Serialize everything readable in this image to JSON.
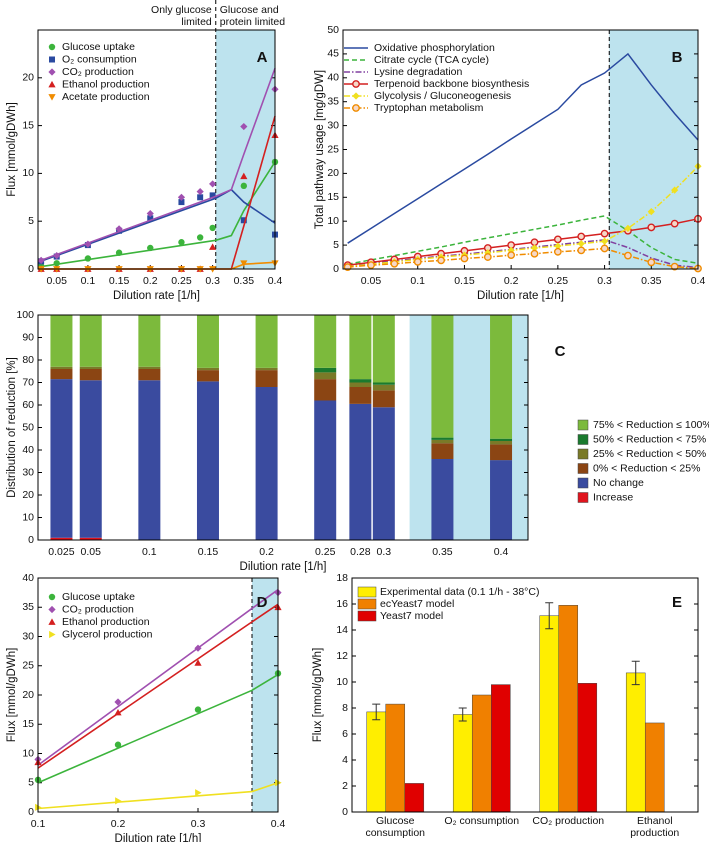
{
  "chart_data": [
    {
      "type": "scatter",
      "label": "A",
      "xlabel": "Dilution rate [1/h]",
      "ylabel": "Flux [mmol/gDWh]",
      "annotations": [
        "Only glucose limited",
        "Glucose  and protein limited"
      ],
      "x": [
        0.025,
        0.05,
        0.1,
        0.15,
        0.2,
        0.25,
        0.28,
        0.3,
        0.35,
        0.4
      ],
      "xlim": [
        0.02,
        0.4
      ],
      "xticks": [
        0.05,
        0.1,
        0.15,
        0.2,
        0.25,
        0.3,
        0.35,
        0.4
      ],
      "ylim": [
        0,
        25
      ],
      "yticks": [
        0,
        5,
        10,
        15,
        20
      ],
      "threshold": 0.305,
      "threshold_line": true,
      "fit_x": [
        0.02,
        0.305,
        0.33,
        0.35,
        0.4
      ],
      "series": [
        {
          "name": "Glucose uptake",
          "color": "#3cb43c",
          "marker": "circle",
          "values": [
            0.3,
            0.6,
            1.1,
            1.7,
            2.2,
            2.8,
            3.3,
            4.3,
            8.7,
            11.2
          ],
          "fit": [
            0.2,
            3.0,
            3.5,
            6.1,
            11.2
          ]
        },
        {
          "name": "O₂ consumption",
          "color": "#2a4aa0",
          "marker": "square",
          "values": [
            0.8,
            1.3,
            2.5,
            4.0,
            5.3,
            7.0,
            7.5,
            7.7,
            5.1,
            3.6
          ],
          "fit": [
            0.7,
            7.4,
            8.3,
            7.0,
            4.8
          ]
        },
        {
          "name": "CO₂ production",
          "color": "#a050b0",
          "marker": "diamond",
          "values": [
            0.9,
            1.4,
            2.6,
            4.2,
            5.8,
            7.5,
            8.1,
            8.9,
            14.9,
            18.8
          ],
          "fit": [
            0.8,
            7.6,
            8.3,
            12,
            21
          ]
        },
        {
          "name": "Ethanol production",
          "color": "#d42020",
          "marker": "triangle",
          "values": [
            0,
            0,
            0,
            0,
            0,
            0,
            0,
            2.3,
            9.7,
            14
          ],
          "fit": [
            0,
            0,
            0,
            4.5,
            16
          ]
        },
        {
          "name": "Acetate production",
          "color": "#f08c00",
          "marker": "triangle-down",
          "values": [
            0,
            0,
            0,
            0,
            0,
            0,
            0,
            0,
            0.6,
            0.6
          ],
          "fit": [
            0,
            0,
            0,
            0.5,
            0.7
          ]
        }
      ]
    },
    {
      "type": "line",
      "label": "B",
      "xlabel": "Dilution rate [1/h]",
      "ylabel": "Total pathway usage [mg/gDW]",
      "x": [
        0.025,
        0.05,
        0.075,
        0.1,
        0.125,
        0.15,
        0.175,
        0.2,
        0.225,
        0.25,
        0.275,
        0.3,
        0.325,
        0.35,
        0.375,
        0.4
      ],
      "xlim": [
        0.02,
        0.4
      ],
      "xticks": [
        0.05,
        0.1,
        0.15,
        0.2,
        0.25,
        0.3,
        0.35,
        0.4
      ],
      "ylim": [
        0,
        50
      ],
      "yticks": [
        0,
        5,
        10,
        15,
        20,
        25,
        30,
        35,
        40,
        45,
        50
      ],
      "threshold": 0.305,
      "threshold_line": true,
      "series": [
        {
          "name": "Oxidative phosphorylation",
          "color": "#2a4aa0",
          "dash": "solid",
          "values": [
            5.4,
            8.5,
            11.6,
            14.7,
            17.8,
            20.9,
            24,
            27.2,
            30.3,
            33.4,
            38.5,
            41,
            45,
            38.5,
            32.5,
            27
          ]
        },
        {
          "name": "Citrate cycle (TCA cycle)",
          "color": "#3cb43c",
          "dash": "dashed",
          "values": [
            1.0,
            1.9,
            2.8,
            3.7,
            4.6,
            5.6,
            6.5,
            7.4,
            8.3,
            9.2,
            10.2,
            11.1,
            8.0,
            4.5,
            2.0,
            1.2
          ]
        },
        {
          "name": "Lysine degradation",
          "color": "#8040a0",
          "dash": "dashdot",
          "values": [
            0.7,
            1.2,
            1.7,
            2.2,
            2.7,
            3.1,
            3.6,
            4.1,
            4.6,
            5.1,
            5.6,
            6.1,
            4.5,
            2.3,
            0.8,
            0.3
          ]
        },
        {
          "name": "Terpenoid backbone biosynthesis",
          "color": "#d42020",
          "dash": "solid",
          "marker": "circle-open",
          "values": [
            0.8,
            1.4,
            2.0,
            2.6,
            3.2,
            3.8,
            4.4,
            5.0,
            5.6,
            6.2,
            6.8,
            7.4,
            8.0,
            8.7,
            9.5,
            10.5
          ]
        },
        {
          "name": "Glycolysis / Gluconeogenesis",
          "color": "#f0e020",
          "dash": "dashdot",
          "marker": "diamond",
          "values": [
            0.5,
            1.0,
            1.5,
            2.0,
            2.5,
            2.9,
            3.4,
            3.9,
            4.4,
            4.8,
            5.3,
            5.8,
            8.5,
            12,
            16.5,
            21.5
          ]
        },
        {
          "name": "Tryptophan metabolism",
          "color": "#f08c00",
          "dash": "dashdot",
          "marker": "circle-open",
          "values": [
            0.4,
            0.8,
            1.1,
            1.5,
            1.8,
            2.2,
            2.5,
            2.9,
            3.2,
            3.6,
            3.9,
            4.3,
            2.8,
            1.4,
            0.5,
            0.1
          ]
        }
      ]
    },
    {
      "type": "stacked-bar",
      "label": "C",
      "xlabel": "Dilution rate [1/h]",
      "ylabel": "Distribution of reduction [%]",
      "x": [
        0.025,
        0.05,
        0.1,
        0.15,
        0.2,
        0.25,
        0.28,
        0.3,
        0.35,
        0.4
      ],
      "xlim": [
        0.005,
        0.423
      ],
      "ylim": [
        0,
        100
      ],
      "yticks": [
        0,
        10,
        20,
        30,
        40,
        50,
        60,
        70,
        80,
        90,
        100
      ],
      "threshold": 0.322,
      "threshold_line": false,
      "legend_reverse": true,
      "series": [
        {
          "name": "Increase",
          "color": "#e0141e",
          "values": [
            1,
            1,
            0,
            0,
            0,
            0,
            0,
            0,
            0,
            0
          ]
        },
        {
          "name": "No change",
          "color": "#3a4b9f",
          "values": [
            70.5,
            70,
            71,
            70.5,
            68,
            62,
            60.5,
            59,
            36,
            35.5
          ]
        },
        {
          "name": "0% < Reduction < 25%",
          "color": "#8b4513",
          "values": [
            4.5,
            5,
            5,
            5,
            7.5,
            9.5,
            7.5,
            7.5,
            7,
            7
          ]
        },
        {
          "name": "25% < Reduction < 50%",
          "color": "#7a7a28",
          "values": [
            1,
            1,
            1,
            1,
            1,
            3,
            2,
            2.5,
            1.5,
            1.5
          ]
        },
        {
          "name": "50% < Reduction < 75%",
          "color": "#1a7a2e",
          "values": [
            0,
            0,
            0,
            0,
            0,
            2,
            1.5,
            1,
            1,
            1
          ]
        },
        {
          "name": "75% < Reduction ≤ 100%",
          "color": "#7cba3c",
          "values": [
            23,
            23,
            23,
            23.5,
            23.5,
            23.5,
            28.5,
            30,
            54.5,
            55
          ]
        }
      ]
    },
    {
      "type": "scatter",
      "label": "D",
      "xlabel": "Dilution rate [1/h]",
      "ylabel": "Flux [mmol/gDWh]",
      "x": [
        0.1,
        0.2,
        0.3,
        0.4
      ],
      "xlim": [
        0.1,
        0.4
      ],
      "xticks": [
        0.1,
        0.2,
        0.3,
        0.4
      ],
      "ylim": [
        0,
        40
      ],
      "yticks": [
        0,
        5,
        10,
        15,
        20,
        25,
        30,
        35,
        40
      ],
      "threshold": 0.3675,
      "threshold_line": true,
      "fit_x": [
        0.1,
        0.3675,
        0.4
      ],
      "series": [
        {
          "name": "Glucose uptake",
          "color": "#3cb43c",
          "marker": "circle",
          "values": [
            5.5,
            11.5,
            17.5,
            23.7
          ],
          "fit": [
            5,
            20.8,
            23.5
          ]
        },
        {
          "name": "CO₂ production",
          "color": "#a050b0",
          "marker": "diamond",
          "values": [
            9,
            18.8,
            28,
            37.5
          ],
          "fit": [
            8,
            34.8,
            38
          ]
        },
        {
          "name": "Ethanol production",
          "color": "#d42020",
          "marker": "triangle",
          "values": [
            8.5,
            17,
            25.5,
            35
          ],
          "fit": [
            7.5,
            32.5,
            35.5
          ]
        },
        {
          "name": "Glycerol production",
          "color": "#f0e020",
          "marker": "triangle-right",
          "values": [
            0.8,
            1.9,
            3.3,
            5
          ],
          "fit": [
            0.6,
            3.5,
            5.0
          ]
        }
      ]
    },
    {
      "type": "bar",
      "label": "E",
      "ylabel": "Flux [mmol/gDWh]",
      "categories": [
        "Glucose consumption",
        "O₂ consumption",
        "CO₂ production",
        "Ethanol production"
      ],
      "ylim": [
        0,
        18
      ],
      "yticks": [
        0,
        2,
        4,
        6,
        8,
        10,
        12,
        14,
        16,
        18
      ],
      "series": [
        {
          "name": "Experimental data (0.1 1/h - 38°C)",
          "color": "#ffee00",
          "values": [
            7.7,
            7.5,
            15.1,
            10.7
          ],
          "errors": [
            0.6,
            0.5,
            1.0,
            0.9
          ]
        },
        {
          "name": "ecYeast7 model",
          "color": "#f08000",
          "values": [
            8.3,
            9.0,
            15.9,
            6.85
          ]
        },
        {
          "name": "Yeast7 model",
          "color": "#e00000",
          "values": [
            2.2,
            9.8,
            9.9,
            0
          ]
        }
      ]
    }
  ]
}
